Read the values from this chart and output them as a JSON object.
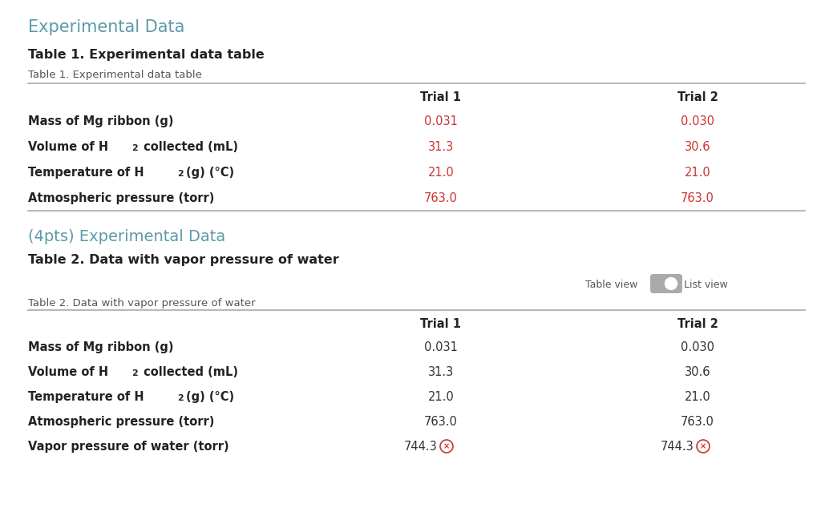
{
  "bg_color": "#ffffff",
  "header_color": "#5b9aaa",
  "section_title_color": "#5b9aaa",
  "bold_title_color": "#222222",
  "row_label_color": "#222222",
  "red_value_color": "#cc3333",
  "dark_value_color": "#333333",
  "table1_caption_color": "#555555",
  "table2_caption_color": "#555555",
  "main_title": "Experimental Data",
  "table1_bold_title": "Table 1. Experimental data table",
  "table1_caption": "Table 1. Experimental data table",
  "table2_section_title": "(4pts) Experimental Data",
  "table2_bold_title": "Table 2. Data with vapor pressure of water",
  "table2_caption": "Table 2. Data with vapor pressure of water",
  "table_view_label": "Table view",
  "list_view_label": "List view",
  "col_headers": [
    "Trial 1",
    "Trial 2"
  ],
  "table1_rows": [
    {
      "label": "Mass of Mg ribbon (g)",
      "sub": null,
      "trial1": "0.031",
      "trial2": "0.030"
    },
    {
      "label": "Volume of H",
      "sub": "2",
      "label2": " collected (mL)",
      "trial1": "31.3",
      "trial2": "30.6"
    },
    {
      "label": "Temperature of H",
      "sub": "2",
      "label2": "(g) (°C)",
      "trial1": "21.0",
      "trial2": "21.0"
    },
    {
      "label": "Atmospheric pressure (torr)",
      "sub": null,
      "trial1": "763.0",
      "trial2": "763.0"
    }
  ],
  "table2_rows": [
    {
      "label": "Mass of Mg ribbon (g)",
      "sub": null,
      "label2": null,
      "trial1": "0.031",
      "trial2": "0.030"
    },
    {
      "label": "Volume of H",
      "sub": "2",
      "label2": " collected (mL)",
      "trial1": "31.3",
      "trial2": "30.6"
    },
    {
      "label": "Temperature of H",
      "sub": "2",
      "label2": "(g) (°C)",
      "trial1": "21.0",
      "trial2": "21.0"
    },
    {
      "label": "Atmospheric pressure (torr)",
      "sub": null,
      "label2": null,
      "trial1": "763.0",
      "trial2": "763.0"
    },
    {
      "label": "Vapor pressure of water (torr)",
      "sub": null,
      "label2": null,
      "trial1": "744.3",
      "trial2": "744.3"
    }
  ]
}
